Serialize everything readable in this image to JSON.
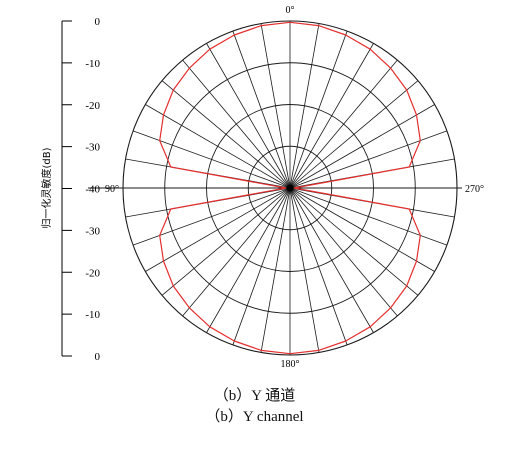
{
  "chart_data": {
    "type": "polar",
    "ylabel": "归一化灵敏度(dB)",
    "radial_axis": {
      "unit": "dB",
      "range": [
        -40,
        0
      ],
      "tick_values": [
        0,
        -10,
        -20,
        -30,
        -40,
        -30,
        -20,
        -10,
        0
      ],
      "tick_labels": [
        "0",
        "-10",
        "-20",
        "-30",
        "-40",
        "-30",
        "-20",
        "-10",
        "0"
      ]
    },
    "angular_axis": {
      "labels": [
        {
          "angle": 0,
          "text": "0°"
        },
        {
          "angle": 90,
          "text": "90°"
        },
        {
          "angle": 180,
          "text": "180°"
        },
        {
          "angle": 270,
          "text": "270°"
        }
      ],
      "spoke_step_deg": 10,
      "ring_db": [
        -30,
        -20,
        -10,
        0
      ]
    },
    "series": [
      {
        "color": "#e53030",
        "angle_deg": [
          0,
          10,
          20,
          30,
          40,
          50,
          60,
          70,
          80,
          90,
          100,
          110,
          120,
          130,
          140,
          150,
          160,
          170,
          180,
          190,
          200,
          210,
          220,
          230,
          240,
          250,
          260,
          270,
          280,
          290,
          300,
          310,
          320,
          330,
          340,
          350
        ],
        "values_db": [
          -0.3,
          -0.5,
          -1.0,
          -1.6,
          -2.5,
          -3.5,
          -5.0,
          -6.8,
          -11.0,
          -39.0,
          -11.0,
          -6.8,
          -5.0,
          -3.5,
          -2.5,
          -1.6,
          -1.0,
          -0.5,
          -0.3,
          -0.5,
          -1.0,
          -1.6,
          -2.5,
          -3.5,
          -5.0,
          -6.8,
          -11.0,
          -39.0,
          -11.0,
          -6.8,
          -5.0,
          -3.5,
          -2.5,
          -1.6,
          -1.0,
          -0.5
        ]
      }
    ]
  },
  "captions": {
    "line1": "（b）Y 通道",
    "line2": "（b）Y channel"
  }
}
